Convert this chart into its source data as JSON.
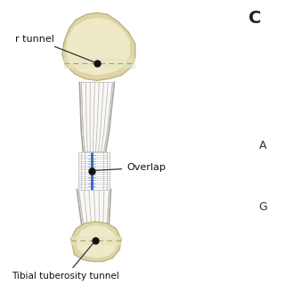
{
  "bg_color": "#ffffff",
  "bone_color": "#ddd4a8",
  "bone_light": "#eeeac8",
  "bone_mid": "#c8bc8a",
  "bone_edge": "#b8a870",
  "tendon_white": "#f8f8f6",
  "tendon_light": "#eceae4",
  "tendon_mid": "#d8d4cc",
  "tendon_stripe": "#c0bbb0",
  "tendon_shadow": "#a8a49c",
  "suture_blue": "#3366bb",
  "dot_color": "#111111",
  "line_color": "#333333",
  "text_color": "#111111",
  "label_tunnel": "r tunnel",
  "label_overlap": "Overlap",
  "label_tibial": "Tibial tuberosity tunnel",
  "label_C": "C",
  "label_A": "A",
  "label_G": "G",
  "font_size": 8.0,
  "title_font_size": 14
}
